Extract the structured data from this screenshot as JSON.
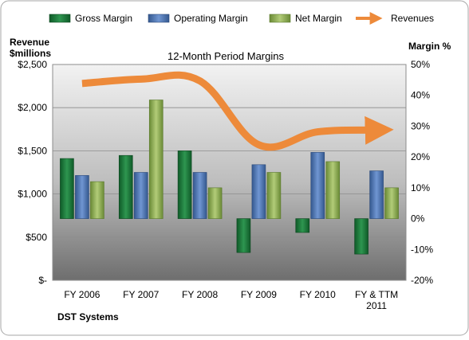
{
  "chart_data": {
    "type": "bar",
    "title": "12-Month Period Margins",
    "categories": [
      "FY 2006",
      "FY 2007",
      "FY 2008",
      "FY 2009",
      "FY 2010",
      "FY & TTM 2011"
    ],
    "series": [
      {
        "name": "Gross Margin",
        "axis": "right",
        "color": "#1e7a3c",
        "values": [
          19.5,
          20.5,
          22.0,
          -11.0,
          -4.5,
          -11.5
        ]
      },
      {
        "name": "Operating Margin",
        "axis": "right",
        "color": "#4f78b8",
        "values": [
          14.0,
          15.0,
          15.0,
          17.5,
          21.5,
          15.5
        ]
      },
      {
        "name": "Net Margin",
        "axis": "right",
        "color": "#8fae52",
        "values": [
          12.0,
          38.5,
          10.0,
          15.0,
          18.5,
          10.0
        ]
      },
      {
        "name": "Revenues",
        "axis": "left",
        "type": "line",
        "color": "#ed8a3a",
        "values": [
          2280,
          2330,
          2310,
          1570,
          1720,
          1740
        ]
      }
    ],
    "y_left": {
      "label_line1": "Revenue",
      "label_line2": "$millions",
      "ylim": [
        0,
        2500
      ],
      "ticks": [
        0,
        500,
        1000,
        1500,
        2000,
        2500
      ],
      "tick_labels": [
        "$-",
        "$500",
        "$1,000",
        "$1,500",
        "$2,000",
        "$2,500"
      ]
    },
    "y_right": {
      "label": "Margin %",
      "ylim": [
        -20,
        50
      ],
      "ticks": [
        -20,
        -10,
        0,
        10,
        20,
        30,
        40,
        50
      ],
      "tick_labels": [
        "-20%",
        "-10%",
        "0%",
        "10%",
        "20%",
        "30%",
        "40%",
        "50%"
      ]
    },
    "legend_position": "top",
    "grid": true,
    "source_label": "DST Systems"
  }
}
